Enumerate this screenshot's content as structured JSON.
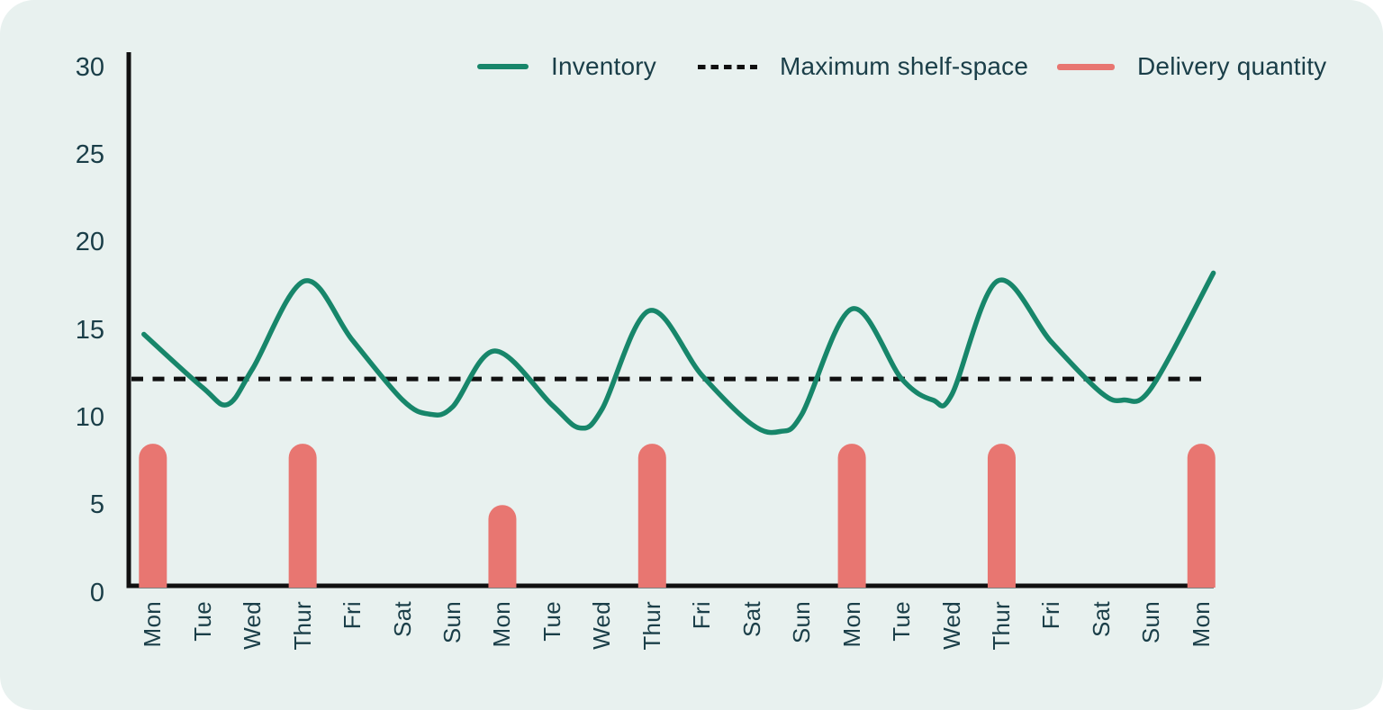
{
  "colors": {
    "background": "#E8F1EF",
    "axis": "#101010",
    "text": "#1A3E48",
    "inventory_green": "#17866A",
    "delivery_salmon": "#E87671",
    "shelf_black": "#101010"
  },
  "chart_data": {
    "type": "line+bar",
    "title": "",
    "xlabel": "",
    "ylabel": "",
    "grid": false,
    "legend_position": "top",
    "ylim": [
      0,
      30
    ],
    "yticks": [
      0,
      5,
      10,
      15,
      20,
      25,
      30
    ],
    "categories": [
      "Mon",
      "Tue",
      "Wed",
      "Thur",
      "Fri",
      "Sat",
      "Sun",
      "Mon",
      "Tue",
      "Wed",
      "Thur",
      "Fri",
      "Sat",
      "Sun",
      "Mon",
      "Tue",
      "Wed",
      "Thur",
      "Fri",
      "Sat",
      "Sun",
      "Mon"
    ],
    "series": [
      {
        "name": "Inventory",
        "type": "line",
        "color": "#17866A",
        "values": [
          14.6,
          11.7,
          12.8,
          17.8,
          14.4,
          11.0,
          10.6,
          13.8,
          10.7,
          10.5,
          16.1,
          12.4,
          9.6,
          10.2,
          16.2,
          12.2,
          11.3,
          17.8,
          14.3,
          11.4,
          11.7,
          18.2
        ]
      },
      {
        "name": "Maximum shelf-space",
        "type": "line-dashed",
        "color": "#101010",
        "value": 12.2
      },
      {
        "name": "Delivery quantity",
        "type": "bar",
        "color": "#E87671",
        "values": [
          8.5,
          0,
          0,
          8.5,
          0,
          0,
          0,
          5,
          0,
          0,
          8.5,
          0,
          0,
          0,
          8.5,
          0,
          0,
          8.5,
          0,
          0,
          0,
          8.5
        ]
      }
    ],
    "inventory_curve_points": [
      [
        -0.18,
        14.75
      ],
      [
        1.0,
        11.7
      ],
      [
        1.5,
        10.75
      ],
      [
        2.0,
        12.8
      ],
      [
        3.04,
        17.8
      ],
      [
        4.0,
        14.4
      ],
      [
        5.0,
        11.0
      ],
      [
        5.53,
        10.2
      ],
      [
        6.0,
        10.6
      ],
      [
        6.85,
        13.8
      ],
      [
        8.0,
        10.7
      ],
      [
        8.56,
        9.4
      ],
      [
        9.0,
        10.5
      ],
      [
        9.94,
        16.1
      ],
      [
        11.0,
        12.4
      ],
      [
        12.0,
        9.6
      ],
      [
        12.56,
        9.2
      ],
      [
        13.0,
        10.2
      ],
      [
        14.0,
        16.2
      ],
      [
        15.0,
        12.2
      ],
      [
        15.62,
        11.0
      ],
      [
        16.0,
        11.3
      ],
      [
        16.92,
        17.8
      ],
      [
        18.0,
        14.3
      ],
      [
        19.0,
        11.4
      ],
      [
        19.45,
        11.0
      ],
      [
        20.0,
        11.7
      ],
      [
        21.24,
        18.25
      ]
    ],
    "legend": [
      {
        "label": "Inventory",
        "color": "#17866A",
        "style": "solid"
      },
      {
        "label": "Maximum shelf-space",
        "color": "#101010",
        "style": "dashed"
      },
      {
        "label": "Delivery quantity",
        "color": "#E87671",
        "style": "solid"
      }
    ]
  }
}
